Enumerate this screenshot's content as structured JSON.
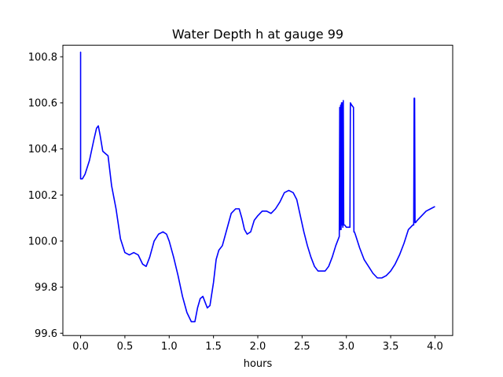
{
  "chart_data": {
    "type": "line",
    "title": "Water Depth h at gauge 99",
    "xlabel": "hours",
    "ylabel": "",
    "xlim": [
      -0.2,
      4.2
    ],
    "ylim": [
      99.59,
      100.85
    ],
    "grid": false,
    "xticks": [
      0.0,
      0.5,
      1.0,
      1.5,
      2.0,
      2.5,
      3.0,
      3.5,
      4.0
    ],
    "xtick_labels": [
      "0.0",
      "0.5",
      "1.0",
      "1.5",
      "2.0",
      "2.5",
      "3.0",
      "3.5",
      "4.0"
    ],
    "yticks": [
      99.6,
      99.8,
      100.0,
      100.2,
      100.4,
      100.6,
      100.8
    ],
    "ytick_labels": [
      "99.6",
      "99.8",
      "100.0",
      "100.2",
      "100.4",
      "100.6",
      "100.8"
    ],
    "series": [
      {
        "color": "#0000ff",
        "x": [
          0.0,
          0.0,
          0.0,
          0.02,
          0.05,
          0.1,
          0.15,
          0.18,
          0.2,
          0.22,
          0.25,
          0.28,
          0.31,
          0.35,
          0.4,
          0.45,
          0.5,
          0.55,
          0.6,
          0.65,
          0.7,
          0.74,
          0.78,
          0.83,
          0.88,
          0.93,
          0.97,
          1.0,
          1.05,
          1.1,
          1.15,
          1.2,
          1.25,
          1.29,
          1.32,
          1.35,
          1.38,
          1.4,
          1.43,
          1.46,
          1.5,
          1.53,
          1.56,
          1.6,
          1.65,
          1.7,
          1.75,
          1.79,
          1.82,
          1.85,
          1.88,
          1.92,
          1.96,
          2.0,
          2.05,
          2.1,
          2.15,
          2.2,
          2.25,
          2.3,
          2.35,
          2.4,
          2.44,
          2.48,
          2.52,
          2.56,
          2.6,
          2.64,
          2.68,
          2.72,
          2.76,
          2.8,
          2.84,
          2.88,
          2.92,
          2.925,
          2.93,
          2.935,
          2.94,
          2.945,
          2.95,
          2.955,
          2.96,
          2.965,
          2.97,
          2.98,
          3.0,
          3.04,
          3.045,
          3.06,
          3.08,
          3.085,
          3.09,
          3.1,
          3.15,
          3.2,
          3.25,
          3.3,
          3.35,
          3.4,
          3.45,
          3.5,
          3.55,
          3.6,
          3.65,
          3.7,
          3.75,
          3.76,
          3.765,
          3.77,
          3.775,
          3.78,
          3.8,
          3.85,
          3.9,
          3.95,
          4.0
        ],
        "y": [
          100.27,
          100.82,
          100.27,
          100.27,
          100.29,
          100.35,
          100.44,
          100.49,
          100.5,
          100.46,
          100.39,
          100.38,
          100.37,
          100.24,
          100.14,
          100.01,
          99.95,
          99.94,
          99.95,
          99.94,
          99.9,
          99.89,
          99.93,
          100.0,
          100.03,
          100.04,
          100.03,
          100.0,
          99.93,
          99.85,
          99.76,
          99.69,
          99.65,
          99.65,
          99.71,
          99.75,
          99.76,
          99.74,
          99.71,
          99.72,
          99.82,
          99.92,
          99.96,
          99.98,
          100.05,
          100.12,
          100.14,
          100.14,
          100.1,
          100.05,
          100.03,
          100.04,
          100.09,
          100.11,
          100.13,
          100.13,
          100.12,
          100.14,
          100.17,
          100.21,
          100.22,
          100.21,
          100.18,
          100.11,
          100.04,
          99.98,
          99.93,
          99.89,
          99.87,
          99.87,
          99.87,
          99.89,
          99.93,
          99.98,
          100.02,
          100.58,
          100.05,
          100.59,
          100.05,
          100.6,
          100.07,
          100.6,
          100.06,
          100.61,
          100.07,
          100.07,
          100.06,
          100.06,
          100.6,
          100.59,
          100.58,
          100.04,
          100.04,
          100.03,
          99.97,
          99.92,
          99.89,
          99.86,
          99.84,
          99.84,
          99.85,
          99.87,
          99.9,
          99.94,
          99.99,
          100.05,
          100.07,
          100.07,
          100.62,
          100.62,
          100.08,
          100.08,
          100.09,
          100.11,
          100.13,
          100.14,
          100.15
        ]
      }
    ]
  }
}
